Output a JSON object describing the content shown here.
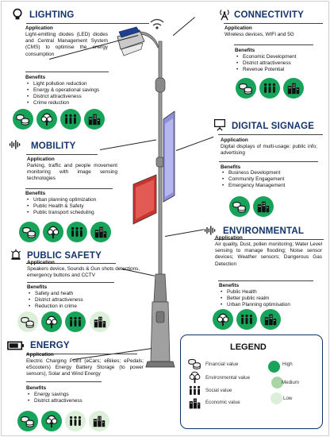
{
  "sections": {
    "lighting": {
      "title": "LIGHTING",
      "icon": "lightbulb-icon",
      "app_heading": "Application",
      "app_text": "Light-emitting diodes (LED) diodes and Central Management System (CMS) to optimise the energy consumption",
      "benefits_heading": "Benefits",
      "benefits": [
        "Light pollution reduction",
        "Energy & operational savings",
        "District attractiveness",
        "Crime reduction"
      ]
    },
    "connectivity": {
      "title": "CONNECTIVITY",
      "icon": "antenna-icon",
      "app_heading": "Application",
      "app_text": "Wireless devices, WIFI and 5G",
      "benefits_heading": "Benefits",
      "benefits": [
        "Economic Development",
        "District attractiveness",
        "Revenue Potential"
      ]
    },
    "digital_signage": {
      "title": "DIGITAL SIGNAGE",
      "icon": "display-board-icon",
      "app_heading": "Application",
      "app_text": "Digital displays of multi-usage: public info; advertising",
      "benefits_heading": "Benefits",
      "benefits": [
        "Business Development",
        "Community Engagement",
        "Emergency Management"
      ]
    },
    "mobility": {
      "title": "MOBILITY",
      "icon": "sound-wave-icon",
      "app_heading": "Application",
      "app_text": "Parking, traffic and people movement monitoring with image sensing technologies",
      "benefits_heading": "Benefits",
      "benefits": [
        "Urban planning optimization",
        "Public Health & Safety",
        "Public transport scheduling"
      ]
    },
    "environmental": {
      "title": "ENVIRONMENTAL",
      "icon": "sound-wave-icon",
      "app_heading": "Application",
      "app_text": "Air quality, Dust, pollen monitoring; Water Level sensing to manage flooding; Noise sensor devices; Weather sensors; Dangerous Gas Detection",
      "benefits_heading": "Benefits",
      "benefits": [
        "Public Health",
        "Better public realm",
        "Urban Planning optimisation"
      ]
    },
    "public_safety": {
      "title": "PUBLIC SAFETY",
      "icon": "siren-icon",
      "app_heading": "Application",
      "app_text": "Speakers device, Sounds & Gun shots detections, emergency buttons and CCTV",
      "benefits_heading": "Benefits",
      "benefits": [
        "Safety and heath",
        "District attractiveness",
        "Reduction in crime"
      ]
    },
    "energy": {
      "title": "ENERGY",
      "icon": "battery-icon",
      "app_heading": "Application",
      "app_text": "Electric Charging Point (eCars; eBikes; ePedals; eScooters) Energy Battery Storage (to power sensors), Solar and Wind Energy",
      "benefits_heading": "Benefits",
      "benefits": [
        "Energy savings",
        "District attractiveness"
      ]
    }
  },
  "ratings": {
    "lighting": [
      "high",
      "high",
      "high",
      "high"
    ],
    "connectivity": [
      "high",
      "high",
      "high"
    ],
    "digital_signage": [
      "high",
      "high"
    ],
    "mobility": [
      "high",
      "high",
      "high",
      "high"
    ],
    "environmental": [
      "high",
      "high",
      "high"
    ],
    "public_safety": [
      "low",
      "high",
      "high",
      "low"
    ],
    "energy": [
      "high",
      "high",
      "low",
      "low"
    ]
  },
  "legend": {
    "title": "LEGEND",
    "items": [
      {
        "icon": "coins-icon",
        "label": "Financial value"
      },
      {
        "icon": "tree-icon",
        "label": "Environmental value"
      },
      {
        "icon": "people-icon",
        "label": "Social value"
      },
      {
        "icon": "buildings-icon",
        "label": "Economic value"
      }
    ],
    "levels": [
      {
        "label": "High",
        "color": "#17a35a"
      },
      {
        "label": "Medium",
        "color": "#a9d4a6"
      },
      {
        "label": "Low",
        "color": "#dcefd8"
      }
    ]
  }
}
